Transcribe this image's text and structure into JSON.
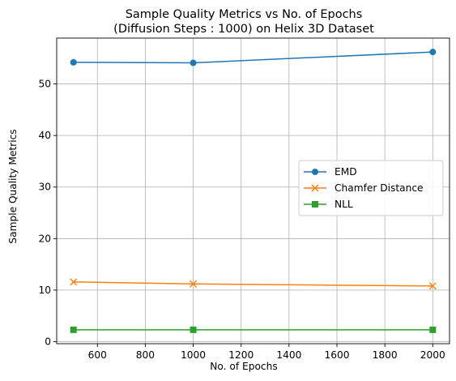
{
  "chart_data": {
    "type": "line",
    "title_line1": "Sample Quality Metrics vs No. of Epochs",
    "title_line2": "(Diffusion Steps : 1000) on Helix 3D Dataset",
    "xlabel": "No. of Epochs",
    "ylabel": "Sample Quality Metrics",
    "x": [
      500,
      1000,
      2000
    ],
    "xlim": [
      430,
      2070
    ],
    "ylim": [
      -0.4,
      58.9
    ],
    "xticks": [
      600,
      800,
      1000,
      1200,
      1400,
      1600,
      1800,
      2000
    ],
    "yticks": [
      0,
      10,
      20,
      30,
      40,
      50
    ],
    "grid": true,
    "legend_position": "center-right",
    "series": [
      {
        "name": "EMD",
        "values": [
          54.2,
          54.1,
          56.2
        ],
        "color": "#1f77b4",
        "marker": "circle"
      },
      {
        "name": "Chamfer Distance",
        "values": [
          11.6,
          11.2,
          10.8
        ],
        "color": "#ff7f0e",
        "marker": "x"
      },
      {
        "name": "NLL",
        "values": [
          2.3,
          2.3,
          2.3
        ],
        "color": "#2ca02c",
        "marker": "square"
      }
    ]
  }
}
